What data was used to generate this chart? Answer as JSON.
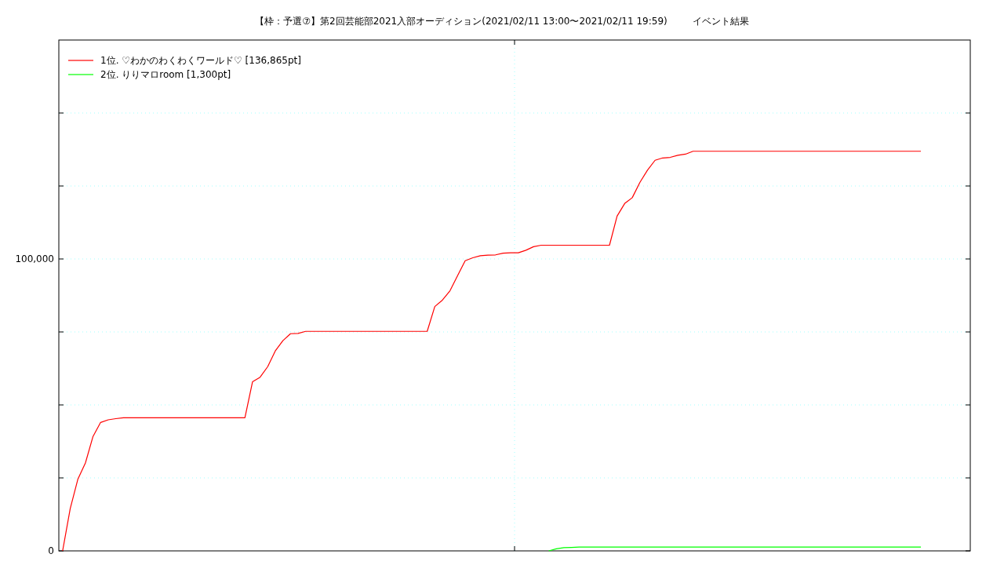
{
  "chart_data": {
    "type": "line",
    "title": "【枠：予選⑦】第2回芸能部2021入部オーディション(2021/02/11 13:00〜2021/02/11 19:59)",
    "subtitle": "イベント結果",
    "categories": [
      null,
      null,
      null,
      null,
      null,
      null,
      null,
      null,
      null,
      null,
      null,
      null,
      null,
      null,
      null,
      null,
      null,
      null,
      null,
      null,
      null,
      null,
      null,
      null,
      null,
      null,
      null,
      null,
      null,
      null,
      null,
      null,
      null,
      null,
      null,
      null,
      null,
      null,
      null,
      null,
      null,
      null,
      null,
      null,
      null,
      null,
      null,
      null,
      null,
      null,
      null,
      null,
      null,
      null,
      null,
      null,
      null,
      null,
      null,
      null,
      null,
      null,
      null,
      null,
      null,
      null,
      null,
      null,
      null,
      null,
      null,
      null,
      null,
      null,
      null,
      null,
      null,
      null,
      null,
      null,
      null,
      null,
      null,
      null,
      null,
      null,
      null,
      null,
      null,
      null,
      null,
      null,
      null,
      null,
      null,
      null,
      null,
      null,
      null,
      null,
      null,
      null,
      null,
      null,
      null,
      null,
      null,
      null,
      null,
      null,
      null,
      null,
      null,
      null,
      null,
      null,
      null,
      null,
      null,
      null
    ],
    "ylim": [
      0,
      175000
    ],
    "yticks": [
      0,
      {
        "value": 25000,
        "label": null
      },
      {
        "value": 50000,
        "label": null
      },
      {
        "value": 75000,
        "label": null
      },
      {
        "value": 100000,
        "label": "100,000"
      },
      {
        "value": 125000,
        "label": null
      },
      {
        "value": 150000,
        "label": null
      }
    ],
    "tick_labels": "y",
    "grid": true,
    "legend": "top left",
    "series": [
      {
        "name": "1位. ♡わかのわくわくワールド♡ [136,865pt]",
        "color": "#ff0000",
        "values": [
          0,
          14500,
          24500,
          30100,
          39200,
          44000,
          44900,
          45300,
          45600,
          45600,
          45600,
          45600,
          45600,
          45600,
          45600,
          45600,
          45600,
          45600,
          45600,
          45600,
          45600,
          45600,
          45600,
          45600,
          45600,
          57900,
          59500,
          63100,
          68500,
          72000,
          74400,
          74500,
          75200,
          75200,
          75200,
          75200,
          75200,
          75200,
          75200,
          75200,
          75200,
          75200,
          75200,
          75200,
          75200,
          75200,
          75200,
          75200,
          75200,
          83700,
          85900,
          89100,
          94300,
          99400,
          100400,
          101100,
          101300,
          101400,
          102000,
          102100,
          102100,
          103000,
          104200,
          104700,
          104700,
          104700,
          104700,
          104700,
          104700,
          104700,
          104700,
          104700,
          104700,
          114700,
          119000,
          121000,
          126200,
          130400,
          133800,
          134600,
          134800,
          135500,
          135900,
          136900,
          136900,
          136900,
          136900,
          136900,
          136900,
          136900,
          136900,
          136900,
          136900,
          136900,
          136900,
          136900,
          136900,
          136900,
          136900,
          136900,
          136900,
          136900,
          136900,
          136900,
          136900,
          136900,
          136900,
          136900,
          136900,
          136900,
          136900,
          136900,
          136900,
          136900,
          null,
          null,
          null,
          null,
          null,
          null
        ]
      },
      {
        "name": "2位. りりマロroom [1,300pt]",
        "color": "#00ff00",
        "values": [
          null,
          null,
          null,
          null,
          null,
          null,
          null,
          null,
          null,
          null,
          null,
          null,
          null,
          null,
          null,
          null,
          null,
          null,
          null,
          null,
          null,
          null,
          null,
          null,
          null,
          null,
          null,
          null,
          null,
          null,
          null,
          null,
          null,
          null,
          null,
          null,
          null,
          null,
          null,
          null,
          null,
          null,
          null,
          null,
          null,
          null,
          null,
          null,
          null,
          null,
          null,
          null,
          null,
          null,
          null,
          null,
          null,
          null,
          null,
          null,
          null,
          null,
          null,
          null,
          0,
          700,
          1100,
          1200,
          1300,
          1300,
          1300,
          1300,
          1300,
          1300,
          1300,
          1300,
          1300,
          1300,
          1300,
          1300,
          1300,
          1300,
          1300,
          1300,
          1300,
          1300,
          1300,
          1300,
          1300,
          1300,
          1300,
          1300,
          1300,
          1300,
          1300,
          1300,
          1300,
          1300,
          1300,
          1300,
          1300,
          1300,
          1300,
          1300,
          1300,
          1300,
          1300,
          1300,
          1300,
          1300,
          1300,
          1300,
          1300,
          1300,
          null,
          null,
          null,
          null,
          null,
          null
        ]
      }
    ]
  }
}
